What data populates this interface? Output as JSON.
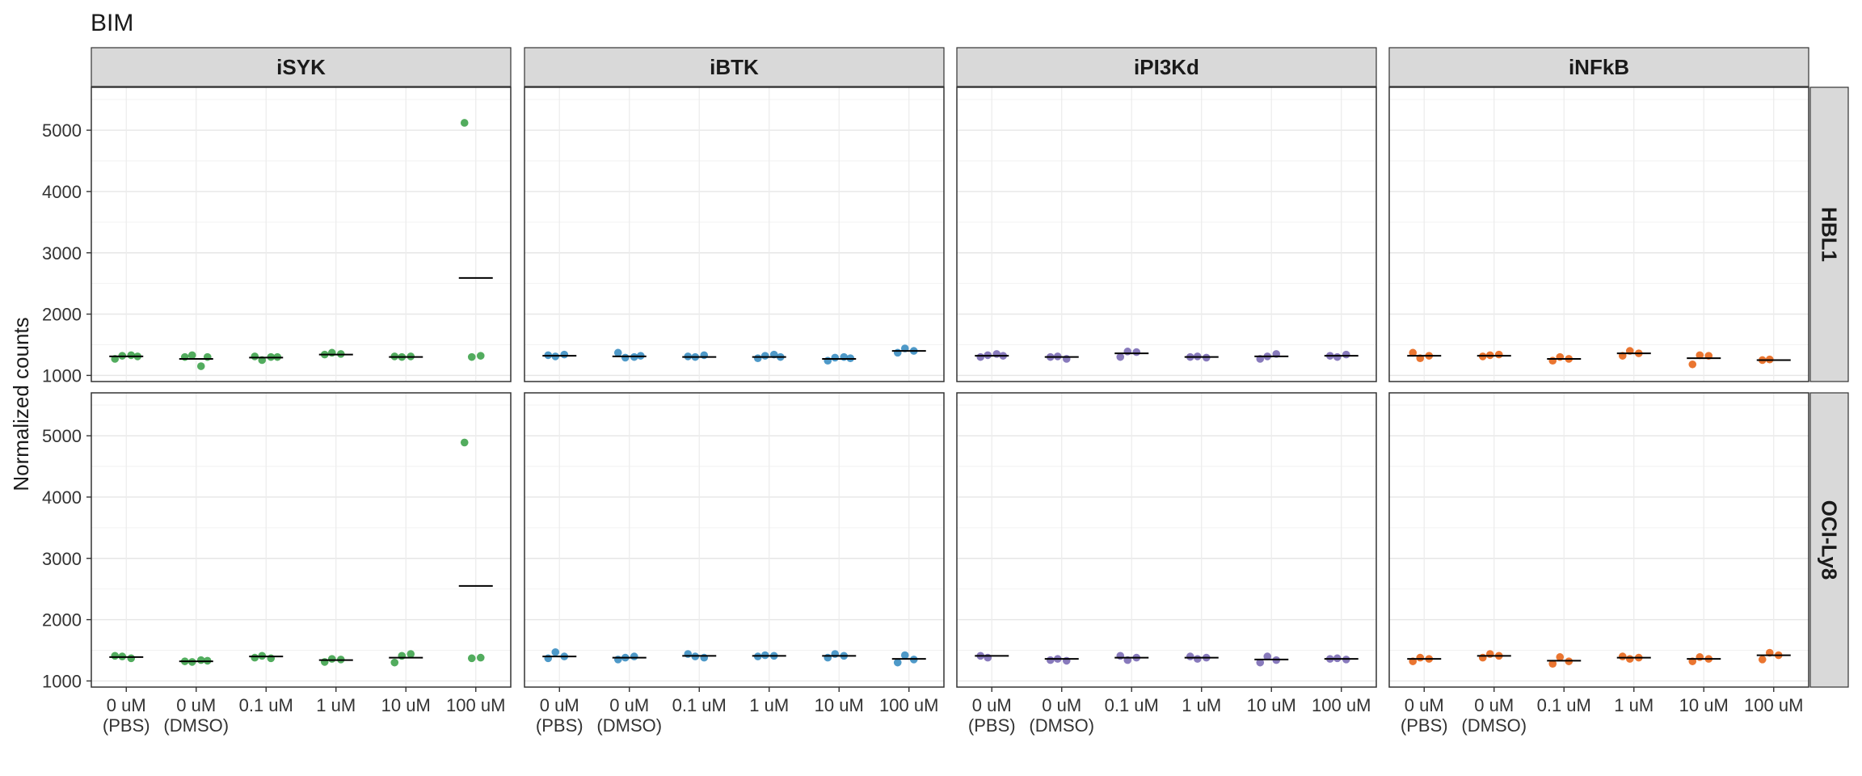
{
  "chart_data": {
    "type": "scatter",
    "title": "BIM",
    "xlabel": "",
    "ylabel": "Normalized counts",
    "ylim": [
      900,
      5700
    ],
    "y_ticks": [
      "1000",
      "2000",
      "3000",
      "4000",
      "5000"
    ],
    "grid": true,
    "legend": "none",
    "categories": [
      [
        "0 uM",
        "(PBS)"
      ],
      [
        "0 uM",
        "(DMSO)"
      ],
      [
        "0.1 uM"
      ],
      [
        "1 uM"
      ],
      [
        "10 uM"
      ],
      [
        "100 uM"
      ]
    ],
    "columns": [
      {
        "label": "iSYK",
        "color": "#3fa34d"
      },
      {
        "label": "iBTK",
        "color": "#3b8ec2"
      },
      {
        "label": "iPI3Kd",
        "color": "#7b6bb5"
      },
      {
        "label": "iNFkB",
        "color": "#e8661a"
      }
    ],
    "rows": [
      {
        "label": "HBL1"
      },
      {
        "label": "OCI-Ly8"
      }
    ],
    "panels": [
      {
        "row": 0,
        "col": 0,
        "groups": [
          {
            "points": [
              1270,
              1320,
              1330,
              1310
            ],
            "mean": 1310
          },
          {
            "points": [
              1300,
              1330,
              1150,
              1300
            ],
            "mean": 1270
          },
          {
            "points": [
              1310,
              1250,
              1300,
              1300
            ],
            "mean": 1290
          },
          {
            "points": [
              1340,
              1370,
              1350
            ],
            "mean": 1340
          },
          {
            "points": [
              1310,
              1300,
              1310
            ],
            "mean": 1300
          },
          {
            "points": [
              5120,
              1300,
              1320
            ],
            "mean": 2590
          }
        ]
      },
      {
        "row": 0,
        "col": 1,
        "groups": [
          {
            "points": [
              1330,
              1310,
              1340
            ],
            "mean": 1320
          },
          {
            "points": [
              1370,
              1290,
              1300,
              1320
            ],
            "mean": 1310
          },
          {
            "points": [
              1310,
              1300,
              1330
            ],
            "mean": 1300
          },
          {
            "points": [
              1280,
              1320,
              1340,
              1300
            ],
            "mean": 1300
          },
          {
            "points": [
              1240,
              1290,
              1300,
              1280
            ],
            "mean": 1270
          },
          {
            "points": [
              1370,
              1440,
              1400
            ],
            "mean": 1400
          }
        ]
      },
      {
        "row": 0,
        "col": 2,
        "groups": [
          {
            "points": [
              1300,
              1330,
              1350,
              1320
            ],
            "mean": 1320
          },
          {
            "points": [
              1300,
              1310,
              1270
            ],
            "mean": 1300
          },
          {
            "points": [
              1300,
              1390,
              1380
            ],
            "mean": 1360
          },
          {
            "points": [
              1300,
              1310,
              1290
            ],
            "mean": 1300
          },
          {
            "points": [
              1270,
              1310,
              1350
            ],
            "mean": 1310
          },
          {
            "points": [
              1320,
              1300,
              1340
            ],
            "mean": 1320
          }
        ]
      },
      {
        "row": 0,
        "col": 3,
        "groups": [
          {
            "points": [
              1370,
              1280,
              1320
            ],
            "mean": 1320
          },
          {
            "points": [
              1310,
              1330,
              1340
            ],
            "mean": 1320
          },
          {
            "points": [
              1240,
              1300,
              1270
            ],
            "mean": 1270
          },
          {
            "points": [
              1320,
              1400,
              1360
            ],
            "mean": 1360
          },
          {
            "points": [
              1180,
              1330,
              1320
            ],
            "mean": 1280
          },
          {
            "points": [
              1250,
              1260
            ],
            "mean": 1250
          }
        ]
      },
      {
        "row": 1,
        "col": 0,
        "groups": [
          {
            "points": [
              1410,
              1400,
              1370
            ],
            "mean": 1390
          },
          {
            "points": [
              1320,
              1310,
              1340,
              1330
            ],
            "mean": 1320
          },
          {
            "points": [
              1380,
              1410,
              1370
            ],
            "mean": 1400
          },
          {
            "points": [
              1310,
              1360,
              1350
            ],
            "mean": 1340
          },
          {
            "points": [
              1300,
              1410,
              1440
            ],
            "mean": 1380
          },
          {
            "points": [
              4890,
              1370,
              1380
            ],
            "mean": 2550
          }
        ]
      },
      {
        "row": 1,
        "col": 1,
        "groups": [
          {
            "points": [
              1370,
              1470,
              1400
            ],
            "mean": 1400
          },
          {
            "points": [
              1350,
              1380,
              1400
            ],
            "mean": 1380
          },
          {
            "points": [
              1440,
              1400,
              1380
            ],
            "mean": 1410
          },
          {
            "points": [
              1400,
              1420,
              1410
            ],
            "mean": 1410
          },
          {
            "points": [
              1380,
              1440,
              1410
            ],
            "mean": 1410
          },
          {
            "points": [
              1300,
              1420,
              1350
            ],
            "mean": 1360
          }
        ]
      },
      {
        "row": 1,
        "col": 2,
        "groups": [
          {
            "points": [
              1410,
              1380
            ],
            "mean": 1410
          },
          {
            "points": [
              1340,
              1360,
              1330
            ],
            "mean": 1360
          },
          {
            "points": [
              1410,
              1340,
              1380
            ],
            "mean": 1380
          },
          {
            "points": [
              1400,
              1360,
              1380
            ],
            "mean": 1380
          },
          {
            "points": [
              1300,
              1400,
              1340
            ],
            "mean": 1350
          },
          {
            "points": [
              1360,
              1370,
              1350
            ],
            "mean": 1360
          }
        ]
      },
      {
        "row": 1,
        "col": 3,
        "groups": [
          {
            "points": [
              1320,
              1380,
              1360
            ],
            "mean": 1360
          },
          {
            "points": [
              1380,
              1440,
              1410
            ],
            "mean": 1410
          },
          {
            "points": [
              1280,
              1390,
              1320
            ],
            "mean": 1330
          },
          {
            "points": [
              1400,
              1360,
              1380
            ],
            "mean": 1380
          },
          {
            "points": [
              1320,
              1390,
              1360
            ],
            "mean": 1360
          },
          {
            "points": [
              1350,
              1460,
              1420
            ],
            "mean": 1420
          }
        ]
      }
    ]
  }
}
